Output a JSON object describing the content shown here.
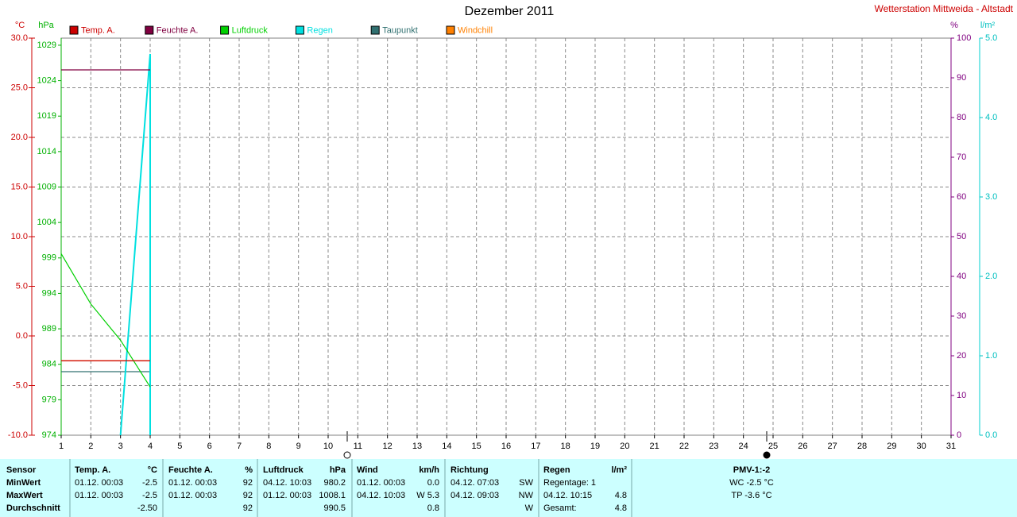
{
  "chart_data": {
    "type": "line",
    "title": "Dezember 2011",
    "station": "Wetterstation Mittweida - Altstadt",
    "ylabel": "°C",
    "y2label": "hPa",
    "y3label": "%",
    "y4label": "l/m²",
    "xlim": [
      1,
      31
    ],
    "xticks": [
      1,
      2,
      3,
      4,
      5,
      6,
      7,
      8,
      9,
      10,
      11,
      12,
      13,
      14,
      15,
      16,
      17,
      18,
      19,
      20,
      21,
      22,
      23,
      24,
      25,
      26,
      27,
      28,
      29,
      30,
      31
    ],
    "ylim": [
      -10,
      30
    ],
    "yticks": [
      {
        "value": 30,
        "label": "30.0"
      },
      {
        "value": 25,
        "label": "25.0"
      },
      {
        "value": 20,
        "label": "20.0"
      },
      {
        "value": 15,
        "label": "15.0"
      },
      {
        "value": 10,
        "label": "10.0"
      },
      {
        "value": 5,
        "label": "5.0"
      },
      {
        "value": 0,
        "label": "0.0"
      },
      {
        "value": -5,
        "label": "-5.0"
      },
      {
        "value": -10,
        "label": "-10.0"
      }
    ],
    "y2lim": [
      974,
      1030
    ],
    "y2ticks": [
      1029,
      1024,
      1019,
      1014,
      1009,
      1004,
      999,
      994,
      989,
      984,
      979,
      974
    ],
    "y3lim": [
      0,
      100
    ],
    "y3ticks": [
      100,
      90,
      80,
      70,
      60,
      50,
      40,
      30,
      20,
      10,
      0
    ],
    "y4lim": [
      0,
      5
    ],
    "y4ticks": [
      {
        "value": 5,
        "label": "5.0"
      },
      {
        "value": 4,
        "label": "4.0"
      },
      {
        "value": 3,
        "label": "3.0"
      },
      {
        "value": 2,
        "label": "2.0"
      },
      {
        "value": 1,
        "label": "1.0"
      },
      {
        "value": 0,
        "label": "0.0"
      }
    ],
    "grid": true,
    "series": [
      {
        "name": "Temp. A.",
        "color": "#cc0000",
        "axis": "y",
        "x": [
          1,
          4
        ],
        "values": [
          -2.5,
          -2.5
        ]
      },
      {
        "name": "Feuchte A.",
        "color": "#800040",
        "axis": "y3",
        "x": [
          1,
          4
        ],
        "values": [
          92,
          92
        ]
      },
      {
        "name": "Luftdruck",
        "color": "#00d000",
        "axis": "y2",
        "x": [
          1,
          2,
          3,
          4
        ],
        "values": [
          999.6,
          992.5,
          987.4,
          980.8
        ]
      },
      {
        "name": "Regen",
        "color": "#00e0e0",
        "axis": "y4",
        "x": [
          3,
          4,
          4
        ],
        "values": [
          0,
          4.8,
          0
        ]
      },
      {
        "name": "Taupunkt",
        "color": "#307070",
        "axis": "y",
        "x": [
          1,
          4
        ],
        "values": [
          -3.6,
          -3.6
        ]
      },
      {
        "name": "Windchill",
        "color": "#ff8000",
        "axis": "y",
        "x": [
          1,
          4
        ],
        "values": [
          -2.5,
          -2.5
        ]
      }
    ]
  },
  "table": {
    "row_labels": [
      "Sensor",
      "MinWert",
      "MaxWert",
      "Durchschnitt"
    ],
    "columns": [
      {
        "header": "Temp. A.",
        "unit": "°C",
        "rows": [
          {
            "date": "01.12. 00:03",
            "value": "-2.5"
          },
          {
            "date": "01.12. 00:03",
            "value": "-2.5"
          },
          {
            "value": "-2.50"
          }
        ]
      },
      {
        "header": "Feuchte A.",
        "unit": "%",
        "rows": [
          {
            "date": "01.12. 00:03",
            "value": "92"
          },
          {
            "date": "01.12. 00:03",
            "value": "92"
          },
          {
            "value": "92"
          }
        ]
      },
      {
        "header": "Luftdruck",
        "unit": "hPa",
        "rows": [
          {
            "date": "04.12. 10:03",
            "value": "980.2"
          },
          {
            "date": "01.12. 00:03",
            "value": "1008.1"
          },
          {
            "value": "990.5"
          }
        ]
      },
      {
        "header": "Wind",
        "unit": "km/h",
        "rows": [
          {
            "date": "01.12. 00:03",
            "value": "0.0"
          },
          {
            "date": "04.12. 10:03",
            "value": "W 5.3"
          },
          {
            "value": "0.8"
          }
        ]
      },
      {
        "header": "Richtung",
        "rows": [
          {
            "date": "04.12. 07:03",
            "value": "SW"
          },
          {
            "date": "04.12. 09:03",
            "value": "NW"
          },
          {
            "value": "W"
          }
        ]
      },
      {
        "header": "Regen",
        "unit": "l/m²",
        "rows": [
          {
            "date": "Regentage: 1"
          },
          {
            "date": "04.12. 10:15",
            "value": "4.8"
          },
          {
            "date": "Gesamt:",
            "value": "4.8"
          }
        ]
      }
    ],
    "pmv": {
      "title": "PMV-1:-2",
      "lines": [
        "WC -2.5 °C",
        "TP -3.6 °C"
      ]
    }
  }
}
